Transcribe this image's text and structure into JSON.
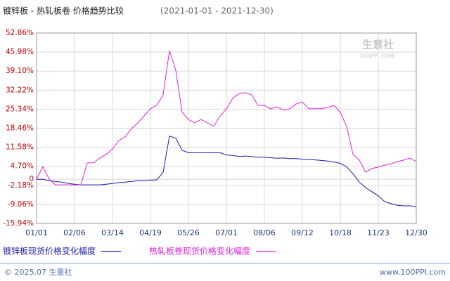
{
  "chart_data": {
    "type": "line",
    "title": "镀锌板 - 热轧板卷 价格趋势比较",
    "subtitle": "(2021-01-01 - 2021-12-30)",
    "categories": [
      "01/01",
      null,
      null,
      null,
      null,
      null,
      "02/06",
      null,
      null,
      null,
      null,
      null,
      "03/14",
      null,
      null,
      null,
      null,
      null,
      "04/19",
      null,
      null,
      null,
      null,
      null,
      "05/26",
      null,
      null,
      null,
      null,
      null,
      "07/01",
      null,
      null,
      null,
      null,
      null,
      "08/06",
      null,
      null,
      null,
      null,
      null,
      "09/12",
      null,
      null,
      null,
      null,
      null,
      "10/18",
      null,
      null,
      null,
      null,
      null,
      "11/23",
      null,
      null,
      null,
      null,
      null,
      "12/30"
    ],
    "series": [
      {
        "name": "镀锌板现货价格变化幅度",
        "color": "#1a1aa8",
        "values": [
          0,
          0,
          -0.5,
          -0.8,
          -1,
          -1.5,
          -1.8,
          -2,
          -2,
          -2,
          -2,
          -1.8,
          -1.5,
          -1.2,
          -1,
          -0.8,
          -0.5,
          -0.5,
          -0.3,
          -0.2,
          2.5,
          15.6,
          14.8,
          10.5,
          9.6,
          9.6,
          9.6,
          9.6,
          9.6,
          9.6,
          8.8,
          8.6,
          8.2,
          8.4,
          8.2,
          8,
          8,
          7.8,
          7.6,
          7.7,
          7.5,
          7.5,
          7.3,
          7.2,
          7,
          6.8,
          6.6,
          6.2,
          5.8,
          4.5,
          2,
          -1,
          -3,
          -4.5,
          -6,
          -8,
          -8.8,
          -9.4,
          -9.6,
          -9.6,
          -9.9
        ]
      },
      {
        "name": "热轧板卷现货价格变化幅度",
        "color": "#e020e0",
        "values": [
          0,
          4.6,
          0,
          -2,
          -2,
          -2,
          -2,
          -2,
          5.9,
          6,
          7.7,
          9,
          11,
          14,
          15.3,
          18.3,
          20.4,
          22.9,
          25.5,
          26.7,
          30.5,
          46.5,
          39.4,
          24.2,
          21.6,
          20.4,
          21.6,
          20.4,
          19.1,
          22.9,
          25.5,
          29.3,
          31,
          31.3,
          30.5,
          26.7,
          26.7,
          25.5,
          26.2,
          25,
          25.5,
          27.2,
          28,
          25.5,
          25.5,
          25.5,
          26,
          26.7,
          24.2,
          19.1,
          9,
          6.9,
          2.6,
          3.9,
          4.4,
          5.1,
          5.6,
          6.4,
          6.9,
          7.7,
          6.4
        ]
      }
    ],
    "ylim": [
      -15.94,
      52.86
    ],
    "yticks": [
      {
        "value": 52.86,
        "label": "52.86%"
      },
      {
        "value": 45.98,
        "label": "45.98%"
      },
      {
        "value": 39.1,
        "label": "39.10%"
      },
      {
        "value": 32.22,
        "label": "32.22%"
      },
      {
        "value": 25.34,
        "label": "25.34%"
      },
      {
        "value": 18.46,
        "label": "18.46%"
      },
      {
        "value": 11.58,
        "label": "11.58%"
      },
      {
        "value": 4.7,
        "label": "4.70%"
      },
      0,
      {
        "value": -2.18,
        "label": "-2.18%"
      },
      {
        "value": -9.06,
        "label": "-9.06%"
      },
      {
        "value": -15.94,
        "label": "-15.94%"
      }
    ],
    "grid": true,
    "watermark": {
      "name": "生意社",
      "url": "100PPI.COM"
    },
    "footer": {
      "copyright": "© 2025.07 生意社",
      "site": "www.100PPI.com"
    }
  }
}
